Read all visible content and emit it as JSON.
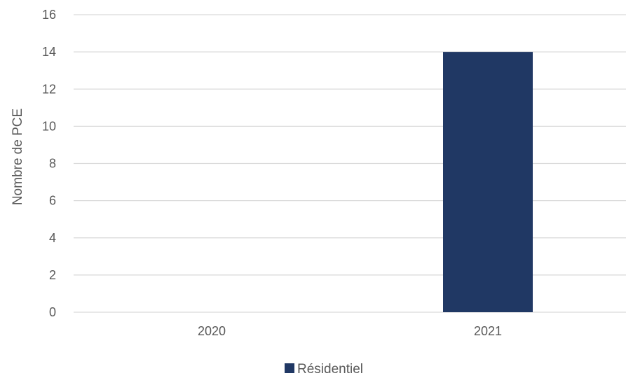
{
  "chart_data": {
    "type": "bar",
    "categories": [
      "2020",
      "2021"
    ],
    "series": [
      {
        "name": "Résidentiel",
        "values": [
          0,
          14
        ],
        "color": "#203864"
      }
    ],
    "ylabel": "Nombre de PCE",
    "ylim": [
      0,
      16
    ],
    "yticks": [
      0,
      2,
      4,
      6,
      8,
      10,
      12,
      14,
      16
    ],
    "grid": true,
    "legend_position": "bottom"
  }
}
